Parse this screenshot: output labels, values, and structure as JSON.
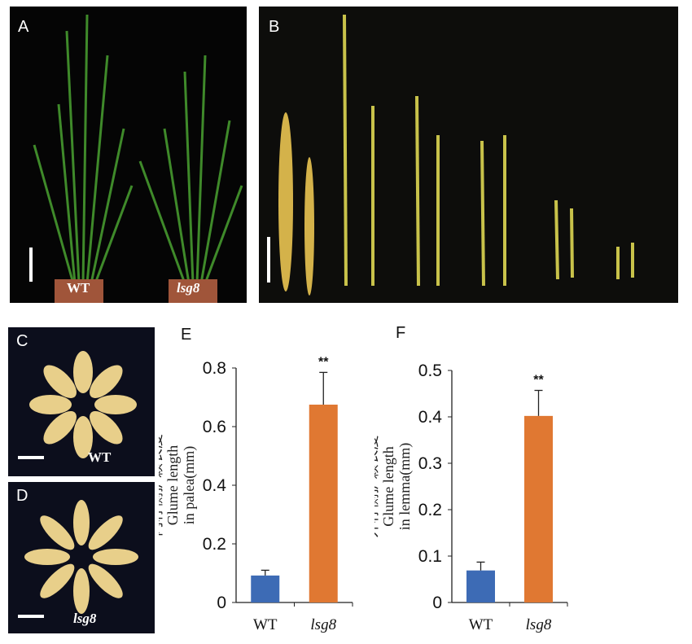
{
  "panels": {
    "a": {
      "label": "A",
      "wt": "WT",
      "mut": "lsg8"
    },
    "b": {
      "label": "B"
    },
    "c": {
      "label": "C",
      "caption": "WT"
    },
    "d": {
      "label": "D",
      "caption": "lsg8"
    },
    "e": {
      "label": "E"
    },
    "f": {
      "label": "F"
    }
  },
  "chart_data": [
    {
      "type": "bar",
      "panel": "E",
      "categories": [
        "WT",
        "lsg8"
      ],
      "values": [
        0.092,
        0.675
      ],
      "errors": [
        0.018,
        0.11
      ],
      "colors": [
        "#3d6bb5",
        "#e07832"
      ],
      "significance": [
        "",
        "**"
      ],
      "ylabel_cn": "内稃侧护颖长度",
      "ylabel_en1": "Glume length",
      "ylabel_en2": "in palea(mm)",
      "ylim": [
        0,
        0.8
      ],
      "yticks": [
        "0",
        "0.2",
        "0.4",
        "0.6",
        "0.8"
      ],
      "ytick_values": [
        0,
        0.2,
        0.4,
        0.6,
        0.8
      ]
    },
    {
      "type": "bar",
      "panel": "F",
      "categories": [
        "WT",
        "lsg8"
      ],
      "values": [
        0.069,
        0.402
      ],
      "errors": [
        0.018,
        0.055
      ],
      "colors": [
        "#3d6bb5",
        "#e07832"
      ],
      "significance": [
        "",
        "**"
      ],
      "ylabel_cn": "外稃侧护颖长度",
      "ylabel_en1": "Glume length",
      "ylabel_en2": "in lemma(mm)",
      "ylim": [
        0,
        0.5
      ],
      "yticks": [
        "0",
        "0.1",
        "0.2",
        "0.3",
        "0.4",
        "0.5"
      ],
      "ytick_values": [
        0,
        0.1,
        0.2,
        0.3,
        0.4,
        0.5
      ]
    }
  ]
}
